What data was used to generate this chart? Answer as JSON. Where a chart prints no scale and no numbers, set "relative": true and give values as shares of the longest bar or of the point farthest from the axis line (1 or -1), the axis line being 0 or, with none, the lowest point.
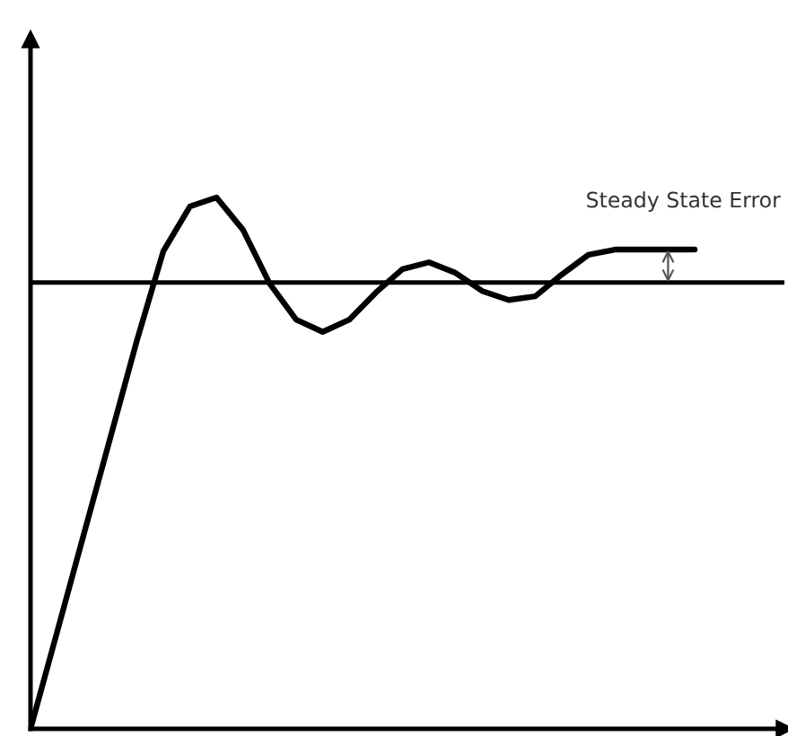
{
  "chart_data": {
    "type": "line",
    "relative": true,
    "categories": [
      null,
      null,
      null,
      null,
      null,
      null,
      null,
      null,
      null,
      null,
      null,
      null,
      null,
      null,
      null,
      null,
      null,
      null,
      null,
      null,
      null,
      null,
      null,
      null,
      null,
      null
    ],
    "series": [
      {
        "color": "#000000",
        "values": [
          0,
          0.182,
          0.365,
          0.547,
          0.73,
          0.899,
          0.983,
          1.0,
          0.939,
          0.838,
          0.77,
          0.747,
          0.77,
          0.821,
          0.865,
          0.878,
          0.858,
          0.824,
          0.807,
          0.814,
          0.855,
          0.892,
          0.902,
          0.902,
          0.902,
          0.902
        ]
      }
    ],
    "ref_lines": [
      {
        "axis": "y",
        "value": 0.84,
        "color": "#000000"
      }
    ],
    "annotations": [
      "Steady State Error"
    ]
  }
}
